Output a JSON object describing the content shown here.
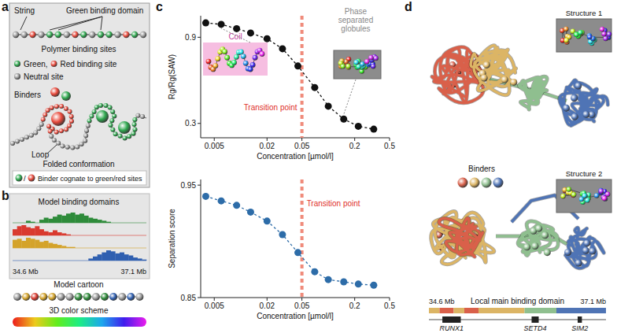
{
  "panels": {
    "a": {
      "label": "a",
      "string": "String",
      "green_binding_domain": "Green binding domain",
      "polymer_binding_sites": "Polymer binding sites",
      "green_site": "Green,",
      "red_site": "Red binding site",
      "neutral_site": "Neutral site",
      "binders": "Binders",
      "loop": "Loop",
      "folded_conformation": "Folded conformation",
      "slash": "/",
      "cognate": "Binder cognate to green/red sites",
      "green_color": "#2fa84f",
      "red_color": "#e8483a",
      "neutral_color": "#9a9a9a"
    },
    "b": {
      "label": "b",
      "title": "Model binding domains",
      "start_label": "34.6 Mb",
      "end_label": "37.1 Mb",
      "cartoon": "Model cartoon",
      "color_scheme": "3D color scheme",
      "tracks": [
        {
          "color": "#2e8b3a",
          "values": [
            0,
            0,
            0,
            0.2,
            0.1,
            0,
            0.3,
            0.5,
            0.4,
            0.6,
            0.8,
            0.7,
            0.9,
            1,
            0.8,
            0.9,
            0.7,
            0.5,
            0.4,
            0.3,
            0.2,
            0.1,
            0,
            0,
            0,
            0,
            0,
            0,
            0,
            0
          ]
        },
        {
          "color": "#d93a2f",
          "values": [
            0.6,
            0.9,
            1,
            0.8,
            0.7,
            0.9,
            0.6,
            0.4,
            0.3,
            0.5,
            0.3,
            0.2,
            0.1,
            0,
            0,
            0,
            0,
            0,
            0,
            0,
            0,
            0,
            0,
            0,
            0,
            0,
            0,
            0,
            0,
            0
          ]
        },
        {
          "color": "#d4a32a",
          "values": [
            0.8,
            0.9,
            0.7,
            1,
            0.9,
            0.8,
            0.6,
            0.7,
            0.5,
            0.4,
            0.3,
            0.2,
            0.1,
            0.1,
            0,
            0,
            0,
            0,
            0,
            0,
            0,
            0,
            0,
            0,
            0,
            0,
            0,
            0,
            0,
            0
          ]
        },
        {
          "color": "#2f5fb0",
          "values": [
            0,
            0,
            0,
            0,
            0,
            0,
            0,
            0,
            0,
            0,
            0,
            0,
            0,
            0,
            0,
            0,
            0,
            0.2,
            0.4,
            0.6,
            0.8,
            1,
            0.9,
            0.7,
            0.8,
            0.6,
            0.5,
            0.3,
            0.2,
            0.1
          ]
        }
      ]
    },
    "c": {
      "label": "c"
    },
    "d": {
      "label": "d",
      "structure1": "Structure 1",
      "structure2": "Structure 2",
      "binders": "Binders",
      "binder_colors": [
        "#d9604a",
        "#dcb565",
        "#8fbf8f",
        "#4f74b5"
      ],
      "domain_title": "Local main binding domain",
      "start_label": "34.6 Mb",
      "end_label": "37.1 Mb",
      "range": [
        34.6,
        37.1
      ],
      "segments": [
        {
          "start": 34.6,
          "end": 34.75,
          "color": "#dcb565"
        },
        {
          "start": 34.75,
          "end": 34.95,
          "color": "#d9604a"
        },
        {
          "start": 34.95,
          "end": 35.1,
          "color": "#dcb565"
        },
        {
          "start": 35.1,
          "end": 35.3,
          "color": "#d9604a"
        },
        {
          "start": 35.3,
          "end": 35.95,
          "color": "#dcb565"
        },
        {
          "start": 35.95,
          "end": 36.4,
          "color": "#8fbf8f"
        },
        {
          "start": 36.4,
          "end": 37.1,
          "color": "#4f74b5"
        }
      ],
      "genes": [
        {
          "name": "RUNX1",
          "start": 34.79,
          "end": 35.05
        },
        {
          "name": "SETD4",
          "start": 36.05,
          "end": 36.15
        },
        {
          "name": "SIM2",
          "start": 36.7,
          "end": 36.76
        }
      ]
    }
  },
  "chart_data": [
    {
      "type": "line",
      "x": [
        0.004,
        0.006,
        0.009,
        0.013,
        0.02,
        0.03,
        0.045,
        0.07,
        0.1,
        0.15,
        0.22,
        0.33
      ],
      "values": [
        1.0,
        0.99,
        0.96,
        0.93,
        0.89,
        0.82,
        0.7,
        0.55,
        0.42,
        0.33,
        0.28,
        0.26
      ],
      "color": "#111111",
      "marker": "circle",
      "line_style": "dashed",
      "log": "x",
      "xlim": [
        0.0035,
        0.5
      ],
      "xticks": [
        0.005,
        0.02,
        0.05,
        0.2,
        0.5
      ],
      "ylim": [
        0.2,
        1.05
      ],
      "yticks": [
        0.3,
        0.9
      ],
      "x_label": "Concentration [µmol/l]",
      "y_label": "Rg/Rg(SAW)",
      "transition_x": 0.05,
      "transition_label": "Transition point",
      "coil_label": "Coil",
      "globule_label": "Phase separated globules"
    },
    {
      "type": "line",
      "x": [
        0.004,
        0.006,
        0.009,
        0.013,
        0.02,
        0.03,
        0.045,
        0.07,
        0.1,
        0.15,
        0.22,
        0.33
      ],
      "values": [
        0.94,
        0.936,
        0.932,
        0.926,
        0.918,
        0.906,
        0.89,
        0.873,
        0.866,
        0.864,
        0.862,
        0.861
      ],
      "color": "#2d6ca8",
      "marker": "circle",
      "line_style": "dashed",
      "log": "x",
      "xlim": [
        0.0035,
        0.5
      ],
      "xticks": [
        0.005,
        0.02,
        0.05,
        0.2,
        0.5
      ],
      "ylim": [
        0.85,
        0.955
      ],
      "yticks": [
        0.85,
        0.95
      ],
      "x_label": "Concentration [µmol/l]",
      "y_label": "Separation score",
      "transition_x": 0.05,
      "transition_label": "Transition point"
    }
  ]
}
